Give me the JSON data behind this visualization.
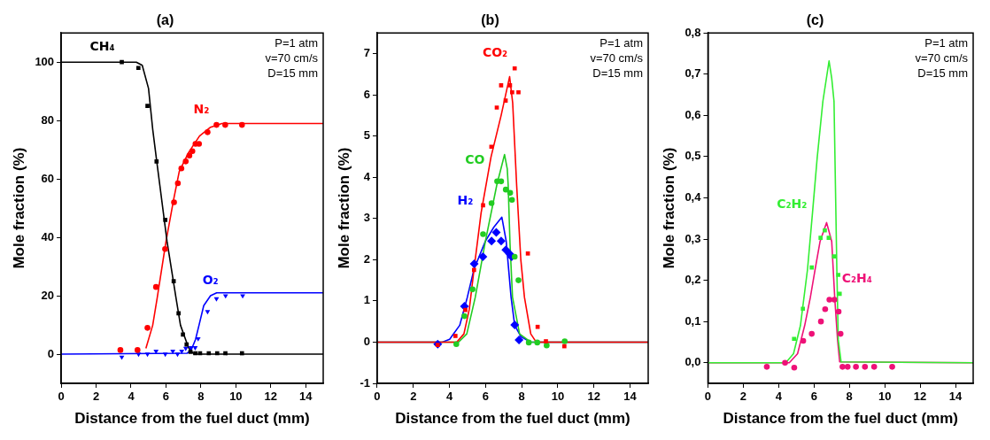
{
  "chart_data": [
    {
      "type": "scatter",
      "title": "(a)",
      "xlabel": "Distance from the fuel duct (mm)",
      "ylabel": "Mole fraction (%)",
      "xlim": [
        0,
        15
      ],
      "ylim": [
        -10,
        110
      ],
      "xticks": [
        0,
        2,
        4,
        6,
        8,
        10,
        12,
        14
      ],
      "yticks": [
        0,
        20,
        40,
        60,
        80,
        100
      ],
      "annotations": [
        "P=1 atm",
        "v=70 cm/s",
        "D=15 mm"
      ],
      "series": [
        {
          "name": "CH₄",
          "marker": "square",
          "color": "#000000",
          "x": [
            3.47,
            4.42,
            4.94,
            5.46,
            5.96,
            6.44,
            6.72,
            6.97,
            7.18,
            7.4,
            7.68,
            7.95,
            8.45,
            8.93,
            9.4,
            10.35
          ],
          "values": [
            100,
            98,
            85,
            66,
            46,
            25,
            14,
            6.7,
            3.3,
            0.8,
            0.3,
            0.3,
            0.3,
            0.3,
            0.3,
            0.3
          ]
        },
        {
          "name": "N₂",
          "marker": "circle",
          "color": "#ff0000",
          "x": [
            3.39,
            4.37,
            4.94,
            5.43,
            5.95,
            6.46,
            6.68,
            6.88,
            7.13,
            7.34,
            7.51,
            7.69,
            7.89,
            8.38,
            8.89,
            9.39,
            10.35
          ],
          "values": [
            1.4,
            1.4,
            9,
            23,
            36,
            52,
            58.5,
            63.6,
            66,
            68,
            69.5,
            72,
            72,
            76,
            78.5,
            78.5,
            78.5
          ]
        },
        {
          "name": "O₂",
          "marker": "triangle",
          "color": "#0000ff",
          "x": [
            3.47,
            4.43,
            4.94,
            5.43,
            5.96,
            6.39,
            6.66,
            6.9,
            7.13,
            7.42,
            7.67,
            7.84,
            8.38,
            8.89,
            9.41,
            10.39
          ],
          "values": [
            -1,
            0,
            0,
            1,
            0,
            1,
            0,
            1,
            2,
            2.2,
            2.2,
            5.3,
            14.6,
            19,
            20,
            20
          ]
        },
        {
          "type": "line",
          "marker": "none",
          "color": "#000000",
          "x": [
            0,
            4.3,
            4.64,
            5.0,
            5.24,
            5.45,
            5.65,
            6.06,
            6.57,
            6.83,
            7.29,
            7.6,
            15
          ],
          "values": [
            100,
            100,
            98.9,
            91,
            77,
            67,
            57.7,
            38.6,
            19.4,
            9.9,
            2.2,
            0,
            0
          ]
        },
        {
          "type": "line",
          "marker": "none",
          "color": "#ff0000",
          "x": [
            4.85,
            5.24,
            5.5,
            6.0,
            6.44,
            6.76,
            7.29,
            7.92,
            8.55,
            9.2,
            15
          ],
          "values": [
            2,
            9.9,
            19.4,
            38.6,
            53,
            62.6,
            69,
            74.7,
            77.7,
            79,
            79
          ]
        },
        {
          "type": "line",
          "marker": "none",
          "color": "#0000ff",
          "x": [
            0,
            7.2,
            7.45,
            7.69,
            7.89,
            8.16,
            8.55,
            8.9,
            15
          ],
          "values": [
            0,
            0.3,
            1.5,
            5,
            9.9,
            16.6,
            20,
            21,
            21
          ]
        }
      ]
    },
    {
      "type": "scatter",
      "title": "(b)",
      "xlabel": "Distance from the fuel duct (mm)",
      "ylabel": "Mole fraction (%)",
      "xlim": [
        0,
        15
      ],
      "ylim": [
        -1,
        7.5
      ],
      "xticks": [
        0,
        2,
        4,
        6,
        8,
        10,
        12,
        14
      ],
      "yticks": [
        -1,
        0,
        1,
        2,
        3,
        4,
        5,
        6,
        7
      ],
      "annotations": [
        "P=1 atm",
        "v=70 cm/s",
        "D=15 mm"
      ],
      "series": [
        {
          "name": "CO₂",
          "marker": "square",
          "color": "#ff0000",
          "x": [
            3.35,
            4.33,
            4.88,
            5.36,
            5.86,
            6.32,
            6.62,
            6.86,
            7.11,
            7.35,
            7.47,
            7.61,
            7.82,
            8.34,
            8.88,
            9.34,
            10.36
          ],
          "values": [
            -0.07,
            0.15,
            0.78,
            1.75,
            3.32,
            4.74,
            5.69,
            6.23,
            5.86,
            6.23,
            6.06,
            6.64,
            6.06,
            2.15,
            0.37,
            0.02,
            -0.1
          ]
        },
        {
          "name": "CO",
          "marker": "circle",
          "color": "#22cc22",
          "x": [
            4.38,
            4.83,
            5.28,
            5.86,
            6.33,
            6.64,
            6.86,
            7.12,
            7.36,
            7.46,
            7.61,
            7.82,
            8.39,
            8.86,
            9.38,
            10.38
          ],
          "values": [
            -0.05,
            0.63,
            1.28,
            2.62,
            3.37,
            3.9,
            3.9,
            3.7,
            3.62,
            3.45,
            2.07,
            1.5,
            -0.01,
            -0.01,
            -0.08,
            0.02
          ]
        },
        {
          "name": "H₂",
          "marker": "diamond",
          "color": "#0000ff",
          "x": [
            3.35,
            4.83,
            5.37,
            5.85,
            6.33,
            6.59,
            6.86,
            7.12,
            7.33,
            7.44,
            7.61,
            7.85
          ],
          "values": [
            -0.05,
            0.87,
            1.9,
            2.07,
            2.45,
            2.66,
            2.45,
            2.24,
            2.14,
            2.07,
            0.42,
            0.05
          ]
        },
        {
          "type": "line",
          "marker": "none",
          "color": "#ff0000",
          "x": [
            0,
            4.4,
            4.8,
            5.1,
            5.36,
            5.75,
            6.3,
            6.86,
            7.33,
            7.5,
            7.72,
            7.95,
            8.15,
            8.5,
            8.8,
            15
          ],
          "values": [
            0,
            0,
            0.2,
            0.8,
            1.77,
            3.13,
            4.49,
            5.5,
            6.44,
            5.8,
            3.8,
            2.0,
            1.09,
            0.2,
            0,
            0
          ]
        },
        {
          "type": "line",
          "marker": "none",
          "color": "#22cc22",
          "x": [
            0,
            4.5,
            4.96,
            5.43,
            5.99,
            6.62,
            7.05,
            7.2,
            7.25,
            7.35,
            7.49,
            7.88,
            8.5,
            15
          ],
          "values": [
            0,
            0,
            0.2,
            1.09,
            2.45,
            3.81,
            4.55,
            4.2,
            3.81,
            2.4,
            1.09,
            0.2,
            0,
            0
          ]
        },
        {
          "type": "line",
          "marker": "none",
          "color": "#0000ff",
          "x": [
            0,
            3.6,
            4.01,
            4.57,
            4.99,
            5.36,
            5.99,
            6.46,
            6.9,
            7.14,
            7.41,
            7.61,
            7.96,
            8.5,
            15
          ],
          "values": [
            0,
            0,
            0.07,
            0.41,
            1.09,
            1.77,
            2.45,
            2.79,
            3.03,
            2.45,
            1.09,
            0.41,
            0.13,
            0,
            0
          ]
        }
      ]
    },
    {
      "type": "scatter",
      "title": "(c)",
      "xlabel": "Distance from the fuel duct (mm)",
      "ylabel": "Mole fraction (%)",
      "xlim": [
        0,
        15
      ],
      "ylim": [
        -0.05,
        0.8
      ],
      "xticks": [
        0,
        2,
        4,
        6,
        8,
        10,
        12,
        14
      ],
      "yticks": [
        {
          "value": 0,
          "label": "0,0"
        },
        {
          "value": 0.1,
          "label": "0,1"
        },
        {
          "value": 0.2,
          "label": "0,2"
        },
        {
          "value": 0.3,
          "label": "0,3"
        },
        {
          "value": 0.4,
          "label": "0,4"
        },
        {
          "value": 0.5,
          "label": "0,5"
        },
        {
          "value": 0.6,
          "label": "0,6"
        },
        {
          "value": 0.7,
          "label": "0,7"
        },
        {
          "value": 0.8,
          "label": "0,8"
        }
      ],
      "annotations": [
        "P=1 atm",
        "v=70 cm/s",
        "D=15 mm"
      ],
      "series": [
        {
          "name": "C₂H₂",
          "marker": "square",
          "color": "#33ee33",
          "x": [
            4.87,
            5.37,
            5.87,
            6.37,
            6.61,
            6.83,
            7.13,
            7.37,
            7.45
          ],
          "values": [
            0.058,
            0.131,
            0.231,
            0.303,
            0.321,
            0.303,
            0.258,
            0.213,
            0.167
          ]
        },
        {
          "name": "C₂H₄",
          "marker": "circle",
          "color": "#ee1177",
          "x": [
            3.33,
            4.36,
            4.88,
            5.39,
            5.87,
            6.39,
            6.63,
            6.87,
            7.15,
            7.39,
            7.5,
            7.61,
            7.9,
            8.37,
            8.88,
            9.4,
            10.42
          ],
          "values": [
            -0.01,
            0,
            -0.012,
            0.053,
            0.07,
            0.1,
            0.13,
            0.153,
            0.153,
            0.124,
            0.07,
            -0.01,
            -0.01,
            -0.01,
            -0.01,
            -0.01,
            -0.01
          ]
        },
        {
          "type": "line",
          "marker": "none",
          "color": "#33ee33",
          "x": [
            0,
            4.4,
            4.84,
            5.23,
            5.63,
            5.91,
            6.18,
            6.5,
            6.85,
            7.0,
            7.13,
            7.21,
            7.29,
            7.37,
            7.53,
            15
          ],
          "values": [
            0,
            0,
            0.022,
            0.09,
            0.226,
            0.362,
            0.498,
            0.634,
            0.732,
            0.69,
            0.634,
            0.43,
            0.226,
            0.056,
            0.002,
            0
          ]
        },
        {
          "type": "line",
          "marker": "none",
          "color": "#ee1177",
          "x": [
            0,
            4.6,
            5.07,
            5.47,
            5.79,
            6.06,
            6.34,
            6.71,
            7.0,
            7.17,
            7.33,
            7.45,
            15
          ],
          "values": [
            0,
            0,
            0.022,
            0.09,
            0.158,
            0.226,
            0.294,
            0.34,
            0.294,
            0.158,
            0.056,
            0.002,
            0
          ]
        }
      ]
    }
  ]
}
